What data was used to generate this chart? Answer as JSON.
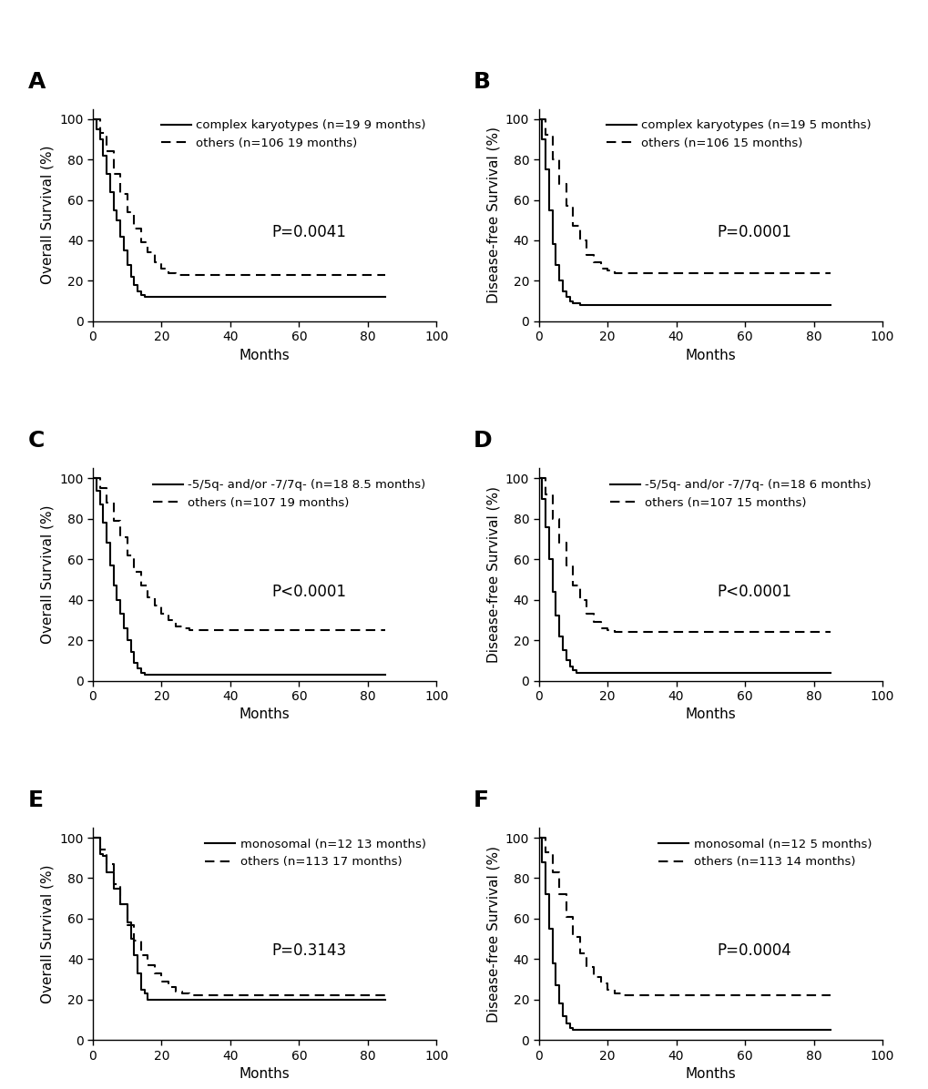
{
  "panels": [
    {
      "label": "A",
      "ylabel": "Overall Survival (%)",
      "pvalue": "P=0.0041",
      "legend1": "complex karyotypes (n=19 9 months)",
      "legend2": "others (n=106 19 months)",
      "curve1_x": [
        0,
        1,
        2,
        3,
        4,
        5,
        6,
        7,
        8,
        9,
        10,
        11,
        12,
        13,
        14,
        15,
        16,
        17,
        18,
        19,
        20,
        85
      ],
      "curve1_y": [
        100,
        95,
        90,
        82,
        73,
        64,
        55,
        50,
        42,
        35,
        28,
        22,
        18,
        15,
        13,
        12,
        12,
        12,
        12,
        12,
        12,
        12
      ],
      "curve2_x": [
        0,
        2,
        4,
        6,
        8,
        10,
        12,
        14,
        16,
        18,
        20,
        22,
        24,
        26,
        28,
        30,
        85
      ],
      "curve2_y": [
        100,
        93,
        84,
        73,
        63,
        54,
        46,
        39,
        34,
        29,
        26,
        24,
        23,
        23,
        23,
        23,
        23
      ]
    },
    {
      "label": "B",
      "ylabel": "Disease-free Survival (%)",
      "pvalue": "P=0.0001",
      "legend1": "complex karyotypes (n=19 5 months)",
      "legend2": "others (n=106 15 months)",
      "curve1_x": [
        0,
        1,
        2,
        3,
        4,
        5,
        6,
        7,
        8,
        9,
        10,
        11,
        12,
        14,
        16,
        18,
        20,
        85
      ],
      "curve1_y": [
        100,
        90,
        75,
        55,
        38,
        28,
        20,
        15,
        12,
        10,
        9,
        9,
        8,
        8,
        8,
        8,
        8,
        8
      ],
      "curve2_x": [
        0,
        2,
        4,
        6,
        8,
        10,
        12,
        14,
        16,
        18,
        20,
        22,
        24,
        26,
        85
      ],
      "curve2_y": [
        100,
        92,
        80,
        68,
        57,
        47,
        40,
        33,
        29,
        26,
        25,
        24,
        24,
        24,
        24
      ]
    },
    {
      "label": "C",
      "ylabel": "Overall Survival (%)",
      "pvalue": "P<0.0001",
      "legend1": "-5/5q- and/or -7/7q- (n=18 8.5 months)",
      "legend2": "others (n=107 19 months)",
      "curve1_x": [
        0,
        1,
        2,
        3,
        4,
        5,
        6,
        7,
        8,
        9,
        10,
        11,
        12,
        13,
        14,
        15,
        16,
        17,
        18,
        20,
        85
      ],
      "curve1_y": [
        100,
        94,
        87,
        78,
        68,
        57,
        47,
        40,
        33,
        26,
        20,
        14,
        9,
        6,
        4,
        3,
        3,
        3,
        3,
        3,
        3
      ],
      "curve2_x": [
        0,
        2,
        4,
        6,
        8,
        10,
        12,
        14,
        16,
        18,
        20,
        22,
        24,
        26,
        28,
        30,
        32,
        35,
        40,
        85
      ],
      "curve2_y": [
        100,
        95,
        88,
        79,
        71,
        62,
        54,
        47,
        41,
        37,
        33,
        30,
        27,
        26,
        25,
        25,
        25,
        25,
        25,
        25
      ]
    },
    {
      "label": "D",
      "ylabel": "Disease-free Survival (%)",
      "pvalue": "P<0.0001",
      "legend1": "-5/5q- and/or -7/7q- (n=18 6 months)",
      "legend2": "others (n=107 15 months)",
      "curve1_x": [
        0,
        1,
        2,
        3,
        4,
        5,
        6,
        7,
        8,
        9,
        10,
        11,
        12,
        14,
        85
      ],
      "curve1_y": [
        100,
        90,
        76,
        60,
        44,
        32,
        22,
        15,
        10,
        7,
        5,
        4,
        4,
        4,
        4
      ],
      "curve2_x": [
        0,
        2,
        4,
        6,
        8,
        10,
        12,
        14,
        16,
        18,
        20,
        22,
        24,
        26,
        85
      ],
      "curve2_y": [
        100,
        92,
        80,
        68,
        57,
        47,
        40,
        33,
        29,
        26,
        25,
        24,
        24,
        24,
        24
      ]
    },
    {
      "label": "E",
      "ylabel": "Overall Survival (%)",
      "pvalue": "P=0.3143",
      "legend1": "monosomal (n=12 13 months)",
      "legend2": "others (n=113 17 months)",
      "curve1_x": [
        0,
        1,
        2,
        3,
        4,
        5,
        6,
        7,
        8,
        9,
        10,
        11,
        12,
        13,
        14,
        15,
        16,
        17,
        18,
        20,
        22,
        25,
        30,
        85
      ],
      "curve1_y": [
        100,
        100,
        92,
        91,
        83,
        83,
        75,
        75,
        67,
        67,
        58,
        50,
        42,
        33,
        25,
        23,
        20,
        20,
        20,
        20,
        20,
        20,
        20,
        20
      ],
      "curve2_x": [
        0,
        2,
        4,
        6,
        8,
        10,
        12,
        14,
        16,
        18,
        20,
        22,
        24,
        26,
        28,
        30,
        85
      ],
      "curve2_y": [
        100,
        94,
        87,
        77,
        67,
        57,
        49,
        42,
        37,
        33,
        29,
        26,
        24,
        23,
        22,
        22,
        22
      ]
    },
    {
      "label": "F",
      "ylabel": "Disease-free Survival (%)",
      "pvalue": "P=0.0004",
      "legend1": "monosomal (n=12 5 months)",
      "legend2": "others (n=113 14 months)",
      "curve1_x": [
        0,
        1,
        2,
        3,
        4,
        5,
        6,
        7,
        8,
        9,
        10,
        11,
        12,
        85
      ],
      "curve1_y": [
        100,
        88,
        72,
        55,
        38,
        27,
        18,
        12,
        8,
        6,
        5,
        5,
        5,
        5
      ],
      "curve2_x": [
        0,
        2,
        4,
        6,
        8,
        10,
        12,
        14,
        16,
        18,
        20,
        22,
        24,
        26,
        28,
        30,
        85
      ],
      "curve2_y": [
        100,
        93,
        83,
        72,
        61,
        51,
        43,
        36,
        31,
        28,
        25,
        23,
        22,
        22,
        22,
        22,
        22
      ]
    }
  ],
  "xlim": [
    0,
    100
  ],
  "ylim": [
    0,
    105
  ],
  "xticks": [
    0,
    20,
    40,
    60,
    80,
    100
  ],
  "yticks": [
    0,
    20,
    40,
    60,
    80,
    100
  ],
  "xlabel": "Months",
  "line_color": "#000000",
  "pvalue_fontsize": 12,
  "axis_label_fontsize": 11,
  "tick_fontsize": 10,
  "legend_fontsize": 9.5,
  "panel_label_fontsize": 18
}
